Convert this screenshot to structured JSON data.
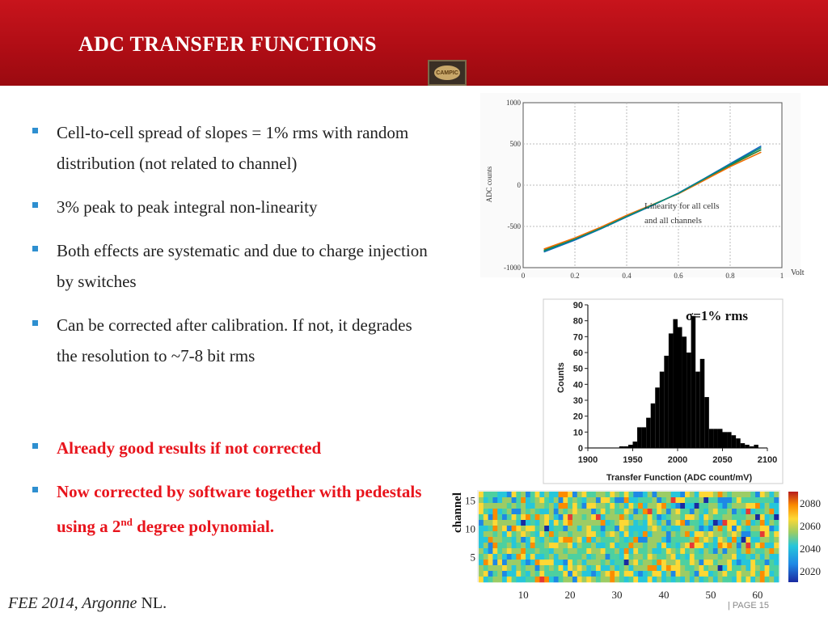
{
  "header": {
    "title": "ADC TRANSFER FUNCTIONS",
    "logo_text": "CAMPIC"
  },
  "bullets": [
    {
      "text": "Cell-to-cell spread of  slopes = 1% rms with random distribution (not related to channel)",
      "style": "normal"
    },
    {
      "text": "3% peak to peak integral non-linearity",
      "style": "normal"
    },
    {
      "text": "Both effects are systematic and due to charge injection  by switches",
      "style": "normal"
    },
    {
      "text": "Can be corrected after calibration. If  not, it degrades the resolution to ~7-8 bit rms",
      "style": "normal"
    },
    {
      "text": "Already good results if  not corrected",
      "style": "red"
    },
    {
      "text_pre": "Now corrected by software together with pedestals using a 2",
      "sup": "nd",
      "text_post": " degree polynomial.",
      "style": "red"
    }
  ],
  "footer": {
    "event": "FEE 2014, Argonne",
    "nl": " NL.",
    "page": "|  PAGE 15"
  },
  "bullet_color": "#2e8fd0",
  "accent_red": "#e8141c",
  "chart_data": [
    {
      "type": "line",
      "xlabel": "Volt",
      "ylabel": "ADC counts",
      "annotation": [
        "Linearity for all cells",
        "and all channels"
      ],
      "xlim": [
        0,
        1
      ],
      "ylim": [
        -1000,
        1000
      ],
      "xticks": [
        "0",
        "0.2",
        "0.4",
        "0.6",
        "0.8",
        "1"
      ],
      "yticks": [
        "1000",
        "500",
        "0",
        "-500",
        "-1000"
      ],
      "grid": true,
      "x": [
        0.08,
        0.2,
        0.3,
        0.4,
        0.5,
        0.6,
        0.7,
        0.8,
        0.92
      ],
      "series": [
        {
          "color": "#2e7d32",
          "values": [
            -790,
            -650,
            -520,
            -375,
            -240,
            -100,
            70,
            240,
            430
          ]
        },
        {
          "color": "#1565c0",
          "values": [
            -810,
            -665,
            -530,
            -385,
            -245,
            -95,
            80,
            260,
            475
          ]
        },
        {
          "color": "#ef6c00",
          "values": [
            -775,
            -640,
            -510,
            -365,
            -235,
            -105,
            60,
            225,
            400
          ]
        },
        {
          "color": "#00897b",
          "values": [
            -800,
            -655,
            -525,
            -380,
            -240,
            -100,
            75,
            250,
            455
          ]
        }
      ]
    },
    {
      "type": "bar",
      "title": "σ=1% rms",
      "xlabel": "Transfer Function (ADC count/mV)",
      "ylabel": "Counts",
      "xlim": [
        1900,
        2100
      ],
      "ylim": [
        0,
        90
      ],
      "xticks": [
        "1900",
        "1950",
        "2000",
        "2050",
        "2100"
      ],
      "yticks": [
        "90",
        "80",
        "70",
        "60",
        "50",
        "40",
        "30",
        "20",
        "10",
        "0"
      ],
      "bin_width": 5,
      "bins": [
        1935,
        1940,
        1945,
        1950,
        1955,
        1960,
        1965,
        1970,
        1975,
        1980,
        1985,
        1990,
        1995,
        2000,
        2005,
        2010,
        2015,
        2020,
        2025,
        2030,
        2035,
        2040,
        2045,
        2050,
        2055,
        2060,
        2065,
        2070,
        2075,
        2080,
        2085
      ],
      "values": [
        1,
        1,
        2,
        4,
        13,
        13,
        19,
        28,
        38,
        48,
        58,
        72,
        81,
        76,
        70,
        60,
        83,
        48,
        56,
        32,
        12,
        12,
        12,
        10,
        10,
        8,
        6,
        3,
        2,
        1,
        2
      ]
    },
    {
      "type": "heatmap",
      "ylabel": "channel",
      "xticks": [
        "10",
        "20",
        "30",
        "40",
        "50",
        "60"
      ],
      "yticks": [
        "15",
        "10",
        "5"
      ],
      "colorbar_ticks": [
        "2080",
        "2060",
        "2040",
        "2020"
      ],
      "zlim": [
        2010,
        2090
      ],
      "columns": 64,
      "rows": 16
    }
  ]
}
